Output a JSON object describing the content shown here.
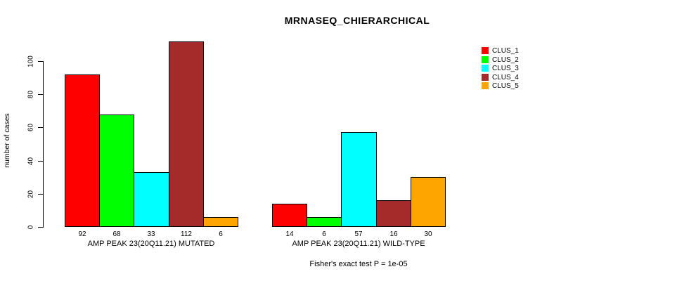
{
  "chart_data": {
    "type": "bar",
    "title": "MRNASEQ_CHIERARCHICAL",
    "ylabel": "number of cases",
    "xlabel": "",
    "categories": [
      "AMP PEAK 23(20Q11.21) MUTATED",
      "AMP PEAK 23(20Q11.21) WILD-TYPE"
    ],
    "series": [
      {
        "name": "CLUS_1",
        "color": "#FF0000",
        "values": [
          92,
          14
        ]
      },
      {
        "name": "CLUS_2",
        "color": "#00FF00",
        "values": [
          68,
          6
        ]
      },
      {
        "name": "CLUS_3",
        "color": "#00FFFF",
        "values": [
          33,
          57
        ]
      },
      {
        "name": "CLUS_4",
        "color": "#A52A2A",
        "values": [
          112,
          16
        ]
      },
      {
        "name": "CLUS_5",
        "color": "#FFA500",
        "values": [
          6,
          30
        ]
      }
    ],
    "yticks": [
      0,
      20,
      40,
      60,
      80,
      100
    ],
    "ylim": [
      0,
      112
    ],
    "grid": false,
    "legend_position": "right",
    "bar_value_labels": true,
    "annotation": "Fisher's exact test P = 1e-05"
  }
}
